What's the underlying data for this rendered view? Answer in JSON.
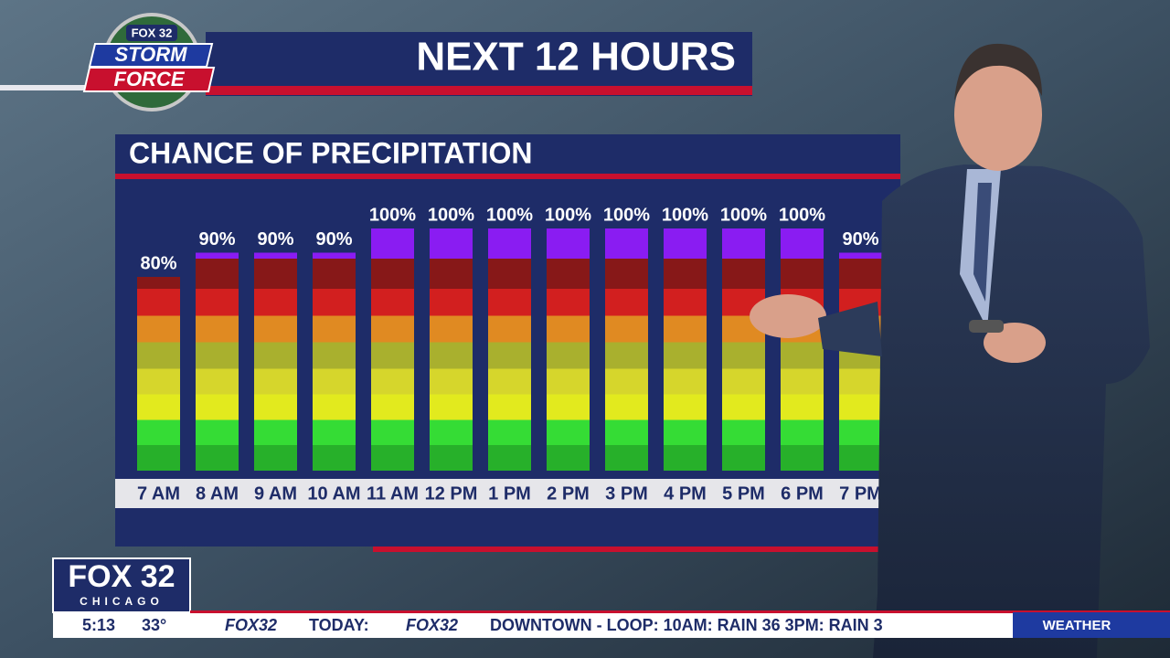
{
  "logo": {
    "station": "FOX 32",
    "line1": "STORM",
    "line2": "FORCE"
  },
  "header": {
    "title": "NEXT 12 HOURS"
  },
  "chart_data": {
    "type": "bar",
    "title": "CHANCE OF PRECIPITATION",
    "categories": [
      "7 AM",
      "8 AM",
      "9 AM",
      "10 AM",
      "11 AM",
      "12 PM",
      "1 PM",
      "2 PM",
      "3 PM",
      "4 PM",
      "5 PM",
      "6 PM",
      "7 PM"
    ],
    "values": [
      80,
      90,
      90,
      90,
      100,
      100,
      100,
      100,
      100,
      100,
      100,
      100,
      90
    ],
    "value_labels": [
      "80%",
      "90%",
      "90%",
      "90%",
      "100%",
      "100%",
      "100%",
      "100%",
      "100%",
      "100%",
      "100%",
      "100%",
      "90%"
    ],
    "ylim": [
      0,
      100
    ]
  },
  "station_bug": {
    "name": "FOX 32",
    "city": "CHICAGO"
  },
  "ticker": {
    "time": "5:13",
    "temperature": "33°",
    "items": [
      "FOX32",
      "TODAY:",
      "FOX32",
      "DOWNTOWN - LOOP: 10AM: RAIN 36 3PM: RAIN 3"
    ],
    "section": "WEATHER"
  }
}
